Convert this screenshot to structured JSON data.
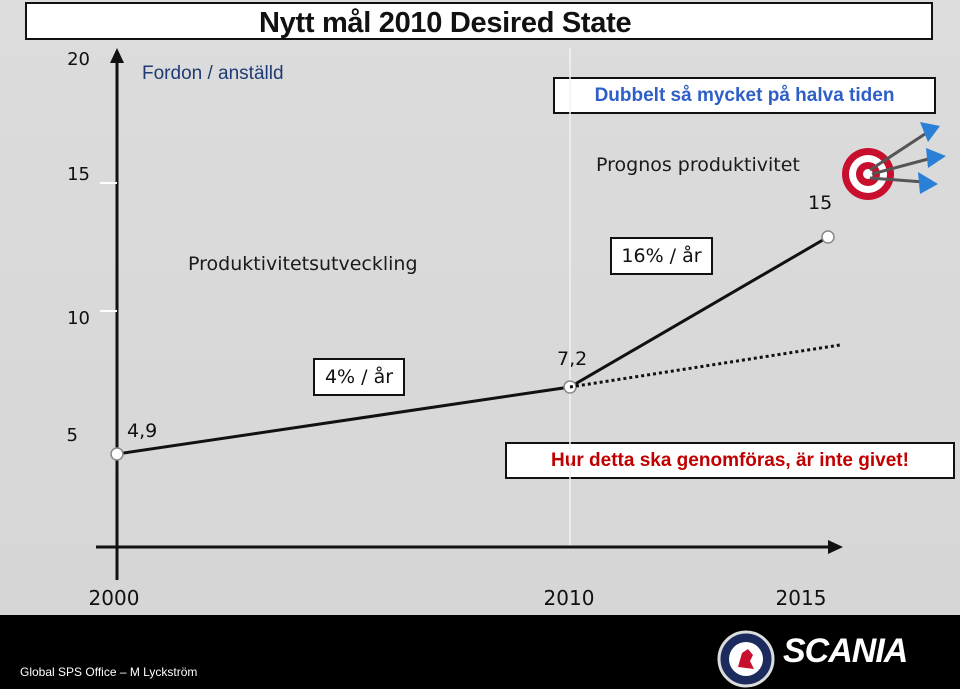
{
  "slide": {
    "title": "Nytt mål 2010  Desired State",
    "unit_label": "Fordon / anställd",
    "callout_top": "Dubbelt så mycket på halva tiden",
    "callout_bottom": "Hur detta ska genomföras, är inte givet!",
    "labels": {
      "forecast": "Prognos produktivitet",
      "development": "Produktivitetsutveckling",
      "rate_high": "16% / år",
      "rate_low": "4% / år"
    }
  },
  "chart_data": {
    "type": "line",
    "x": [
      2000,
      2010,
      2015
    ],
    "xticks": [
      "2000",
      "2010",
      "2015"
    ],
    "xlim": [
      2000,
      2015
    ],
    "yticks": [
      "5",
      "10",
      "15",
      "20"
    ],
    "ylim": [
      5,
      20
    ],
    "series": [
      {
        "values": [
          4.9,
          7.2,
          15
        ],
        "labels": [
          "4,9",
          "7,2",
          "15"
        ],
        "style": "solid"
      },
      {
        "x": [
          2010,
          2015
        ],
        "values": [
          7.2,
          9.1
        ],
        "style": "dotted"
      }
    ],
    "colors": {
      "line": "#111111",
      "marker_fill": "#ffffff",
      "marker_stroke": "#888888"
    }
  },
  "footer": {
    "credit": "Global SPS Office – M Lyckström",
    "brand": "SCANIA"
  },
  "icons": [
    "target-dart-icon",
    "scania-griffin-icon"
  ]
}
